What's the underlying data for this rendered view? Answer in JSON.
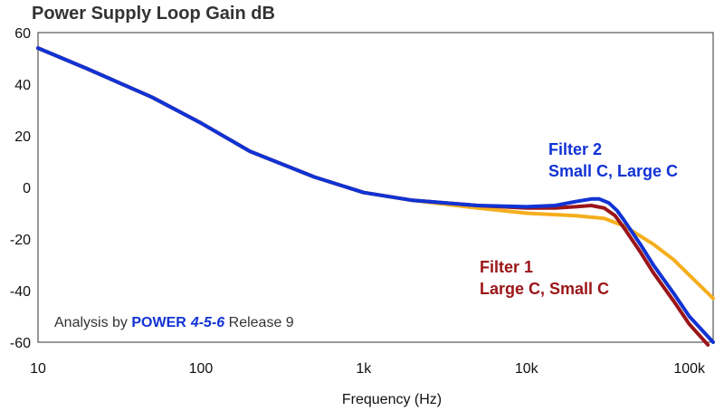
{
  "chart_data": {
    "type": "line",
    "title": "Power Supply Loop Gain dB",
    "xlabel": "Frequency (Hz)",
    "ylabel": "",
    "xscale": "log",
    "xlim": [
      10,
      140000
    ],
    "ylim": [
      -60,
      60
    ],
    "x_ticks": [
      10,
      100,
      1000,
      10000,
      100000
    ],
    "x_tick_labels": [
      "10",
      "100",
      "1k",
      "10k",
      "100k"
    ],
    "y_ticks": [
      60,
      40,
      20,
      0,
      -20,
      -40,
      -60
    ],
    "y_tick_labels": [
      "60",
      "40",
      "20",
      "0",
      "-20",
      "-40",
      "-60"
    ],
    "grid": false,
    "series": [
      {
        "color": "#F5AE1E",
        "points": [
          [
            10,
            54
          ],
          [
            20,
            46
          ],
          [
            50,
            35
          ],
          [
            100,
            25
          ],
          [
            200,
            14
          ],
          [
            500,
            4
          ],
          [
            1000,
            -2
          ],
          [
            2000,
            -5
          ],
          [
            5000,
            -8
          ],
          [
            10000,
            -10
          ],
          [
            20000,
            -11
          ],
          [
            30000,
            -12
          ],
          [
            40000,
            -15
          ],
          [
            60000,
            -22
          ],
          [
            80000,
            -28
          ],
          [
            100000,
            -34
          ],
          [
            140000,
            -43
          ]
        ]
      },
      {
        "color": "#9B1518",
        "points": [
          [
            10,
            54
          ],
          [
            20,
            46
          ],
          [
            50,
            35
          ],
          [
            100,
            25
          ],
          [
            200,
            14
          ],
          [
            500,
            4
          ],
          [
            1000,
            -2
          ],
          [
            2000,
            -5
          ],
          [
            5000,
            -7
          ],
          [
            10000,
            -8
          ],
          [
            15000,
            -8
          ],
          [
            20000,
            -7.5
          ],
          [
            25000,
            -7
          ],
          [
            30000,
            -8
          ],
          [
            35000,
            -11
          ],
          [
            40000,
            -16
          ],
          [
            50000,
            -25
          ],
          [
            60000,
            -33
          ],
          [
            80000,
            -44
          ],
          [
            100000,
            -53
          ],
          [
            130000,
            -61
          ]
        ]
      },
      {
        "color": "#1133D4",
        "points": [
          [
            10,
            54
          ],
          [
            20,
            46
          ],
          [
            50,
            35
          ],
          [
            100,
            25
          ],
          [
            200,
            14
          ],
          [
            500,
            4
          ],
          [
            1000,
            -2
          ],
          [
            2000,
            -5
          ],
          [
            5000,
            -7
          ],
          [
            10000,
            -7.5
          ],
          [
            15000,
            -7
          ],
          [
            20000,
            -5.5
          ],
          [
            25000,
            -4.5
          ],
          [
            28000,
            -4.5
          ],
          [
            32000,
            -6
          ],
          [
            36000,
            -9
          ],
          [
            40000,
            -13
          ],
          [
            50000,
            -22
          ],
          [
            60000,
            -30
          ],
          [
            80000,
            -41
          ],
          [
            100000,
            -50
          ],
          [
            140000,
            -60
          ]
        ]
      }
    ],
    "annotations": [
      {
        "lines": [
          "Filter 2",
          "Small C, Large C"
        ],
        "color": "#1133D4"
      },
      {
        "lines": [
          "Filter 1",
          "Large C, Small C"
        ],
        "color": "#9B1518"
      }
    ],
    "credit": {
      "prefix": "Analysis by ",
      "brand": "POWER",
      "version": "4-5-6",
      "suffix": " Release 9"
    }
  }
}
